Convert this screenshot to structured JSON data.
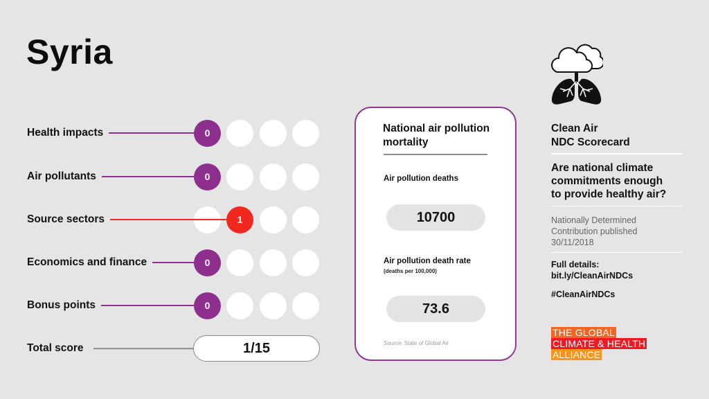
{
  "country": "Syria",
  "colors": {
    "background": "#e5e5e5",
    "purple": "#8f2f8d",
    "red": "#f0281e",
    "logo_orange": "#f26522",
    "logo_red": "#ed1c24",
    "logo_amber": "#f7941d"
  },
  "scorecard": {
    "rows": [
      {
        "label": "Health impacts",
        "score": "0",
        "score_position": 0,
        "color": "#8f2f8d",
        "max_dots": 4
      },
      {
        "label": "Air pollutants",
        "score": "0",
        "score_position": 0,
        "color": "#8f2f8d",
        "max_dots": 4
      },
      {
        "label": "Source sectors",
        "score": "1",
        "score_position": 1,
        "color": "#f0281e",
        "max_dots": 4
      },
      {
        "label": "Economics and finance",
        "score": "0",
        "score_position": 0,
        "color": "#8f2f8d",
        "max_dots": 4
      },
      {
        "label": "Bonus points",
        "score": "0",
        "score_position": 0,
        "color": "#8f2f8d",
        "max_dots": 4
      }
    ],
    "total": {
      "label": "Total score",
      "value": "1/15"
    }
  },
  "mortality_card": {
    "title": "National air pollution mortality",
    "deaths_label": "Air pollution deaths",
    "deaths_value": "10700",
    "rate_label": "Air pollution death rate",
    "rate_sublabel": "(deaths per 100,000)",
    "rate_value": "73.6",
    "source": "Source: State of Global Air"
  },
  "sidebar": {
    "icon": "lungs-cloud-icon",
    "title_line1": "Clean Air",
    "title_line2": "NDC Scorecard",
    "question_line1": "Are national climate",
    "question_line2": "commitments enough",
    "question_line3": "to provide healthy air?",
    "ndc_line1": "Nationally Determined",
    "ndc_line2": "Contribution published",
    "ndc_date": "30/11/2018",
    "details_label": "Full details:",
    "details_link": "bit.ly/CleanAirNDCs",
    "hashtag": "#CleanAirNDCs",
    "logo": {
      "line1": "THE GLOBAL",
      "line2": "CLIMATE & HEALTH",
      "line3": "ALLIANCE"
    }
  }
}
